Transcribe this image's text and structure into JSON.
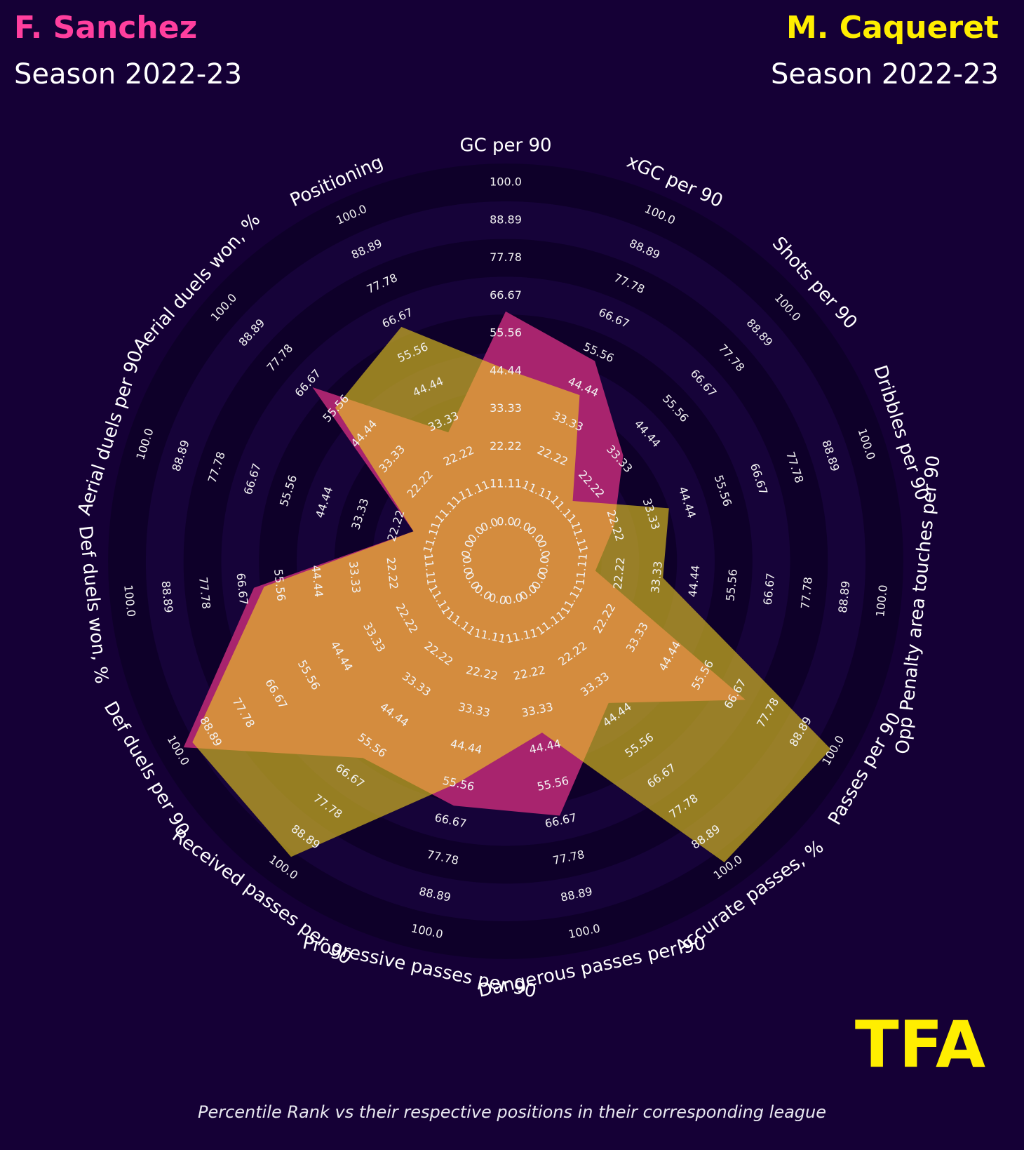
{
  "chart_data": {
    "type": "radar",
    "title_left": "F. Sanchez",
    "subtitle_left": "Season 2022-23",
    "title_right": "M. Caqueret",
    "subtitle_right": "Season 2022-23",
    "logo": "TFA",
    "footnote": "Percentile Rank vs their respective positions in their corresponding league",
    "categories": [
      "GC per 90",
      "xGC per 90",
      "Shots per 90",
      "Dribbles per 90",
      "Opp Penalty area touches per 90",
      "Passes per 90",
      "Accurate passes, %",
      "Dangerous passes per 90",
      "Progressive passes per 90",
      "Received passes per 90",
      "Def duels per 90",
      "Def duels won, %",
      "Aerial duels per 90",
      "Aerial duels won, %",
      "Positioning"
    ],
    "rlim": [
      0,
      100
    ],
    "rticks": [
      {
        "value": 0,
        "label": "0.0"
      },
      11.11,
      22.22,
      33.33,
      44.44,
      55.56,
      66.67,
      77.78,
      88.89,
      {
        "value": 100,
        "label": "100.0"
      }
    ],
    "series": [
      {
        "name": "F. Sanchez",
        "color": "#a8246e",
        "values": [
          62,
          53,
          35,
          22,
          15,
          70,
          40,
          65,
          62,
          60,
          98,
          63,
          17,
          65,
          30
        ]
      },
      {
        "name": "M. Caqueret",
        "color": "#f2d21e",
        "values": [
          45,
          42,
          15,
          39,
          35,
          99,
          98,
          40,
          55,
          96,
          95,
          60,
          17,
          56,
          64
        ]
      }
    ]
  }
}
